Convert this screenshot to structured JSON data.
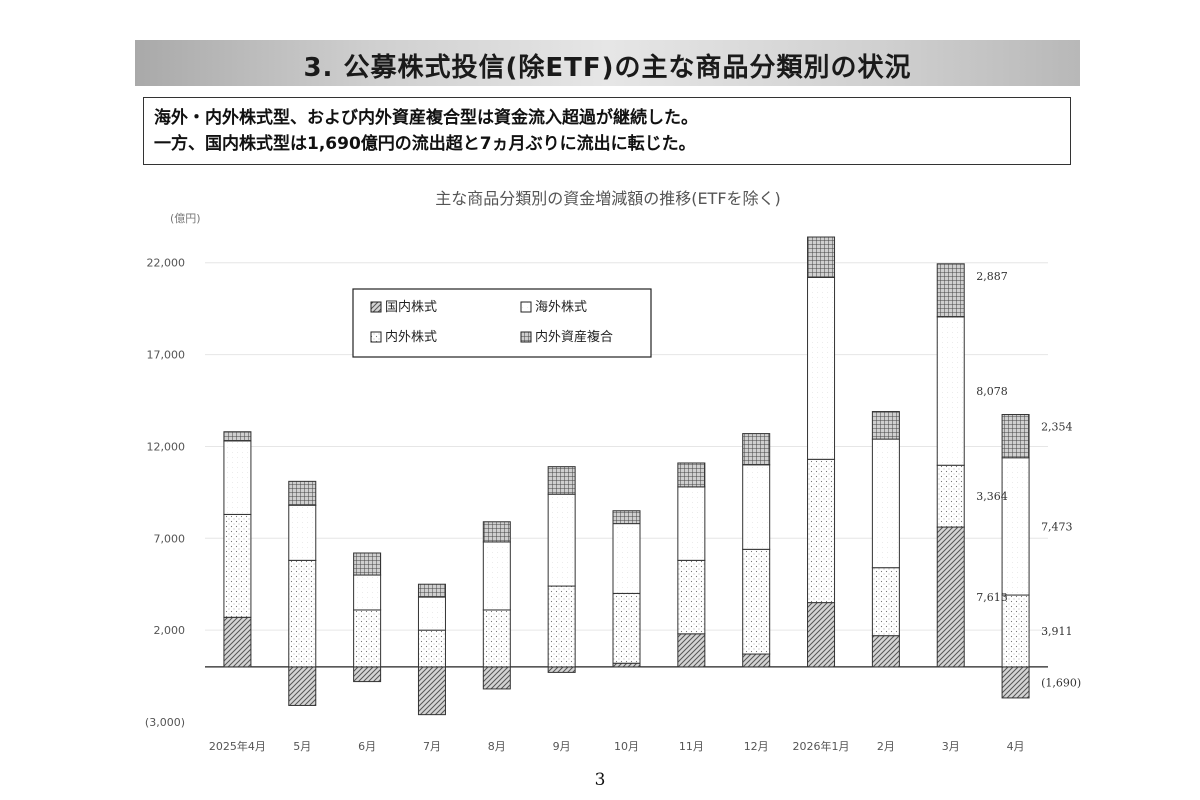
{
  "heading": "3. 公募株式投信(除ETF)の主な商品分類別の状況",
  "summary": [
    "海外・内外株式型、および内外資産複合型は資金流入超過が継続した。",
    "一方、国内株式型は1,690億円の流出超と7ヵ月ぶりに流出に転じた。"
  ],
  "page_number": "3",
  "chart_data": {
    "type": "bar",
    "stacked": true,
    "title": "主な商品分類別の資金増減額の推移(ETFを除く)",
    "ylabel": "(億円)",
    "ylim": [
      -3000,
      24000
    ],
    "y_ticks": [
      {
        "value": -3000,
        "label": "(3,000)"
      },
      {
        "value": 2000,
        "label": "2,000"
      },
      {
        "value": 7000,
        "label": "7,000"
      },
      {
        "value": 12000,
        "label": "12,000"
      },
      {
        "value": 17000,
        "label": "17,000"
      },
      {
        "value": 22000,
        "label": "22,000"
      }
    ],
    "categories": [
      "2025年4月",
      "5月",
      "6月",
      "7月",
      "8月",
      "9月",
      "10月",
      "11月",
      "12月",
      "2026年1月",
      "2月",
      "3月",
      "4月"
    ],
    "series": [
      {
        "name": "国内株式",
        "pattern": "diagonal",
        "values": [
          2700,
          -2100,
          -800,
          -2600,
          -1200,
          -300,
          200,
          1800,
          700,
          3500,
          1700,
          7613,
          -1690
        ]
      },
      {
        "name": "内外株式",
        "pattern": "dots",
        "values": [
          5600,
          5800,
          3100,
          2000,
          3100,
          4400,
          3800,
          4000,
          5700,
          7800,
          3700,
          3364,
          3911
        ]
      },
      {
        "name": "海外株式",
        "pattern": "plain",
        "values": [
          4000,
          3000,
          1900,
          1800,
          3700,
          5000,
          3800,
          4000,
          4600,
          9900,
          7000,
          8078,
          7473
        ]
      },
      {
        "name": "内外資産複合",
        "pattern": "grid",
        "values": [
          500,
          1300,
          1200,
          700,
          1100,
          1500,
          700,
          1300,
          1700,
          2200,
          1500,
          2887,
          2354
        ]
      }
    ],
    "data_labels": [
      {
        "category": "3月",
        "series": "内外資産複合",
        "text": "2,887"
      },
      {
        "category": "3月",
        "series": "海外株式",
        "text": "8,078"
      },
      {
        "category": "3月",
        "series": "内外株式",
        "text": "3,364"
      },
      {
        "category": "3月",
        "series": "国内株式",
        "text": "7,613"
      },
      {
        "category": "4月",
        "series": "内外資産複合",
        "text": "2,354"
      },
      {
        "category": "4月",
        "series": "海外株式",
        "text": "7,473"
      },
      {
        "category": "4月",
        "series": "内外株式",
        "text": "3,911"
      },
      {
        "category": "4月",
        "series": "国内株式",
        "text": "(1,690)"
      }
    ],
    "legend": {
      "position": "upper-left",
      "order": [
        "国内株式",
        "海外株式",
        "内外株式",
        "内外資産複合"
      ]
    },
    "grid": true
  }
}
